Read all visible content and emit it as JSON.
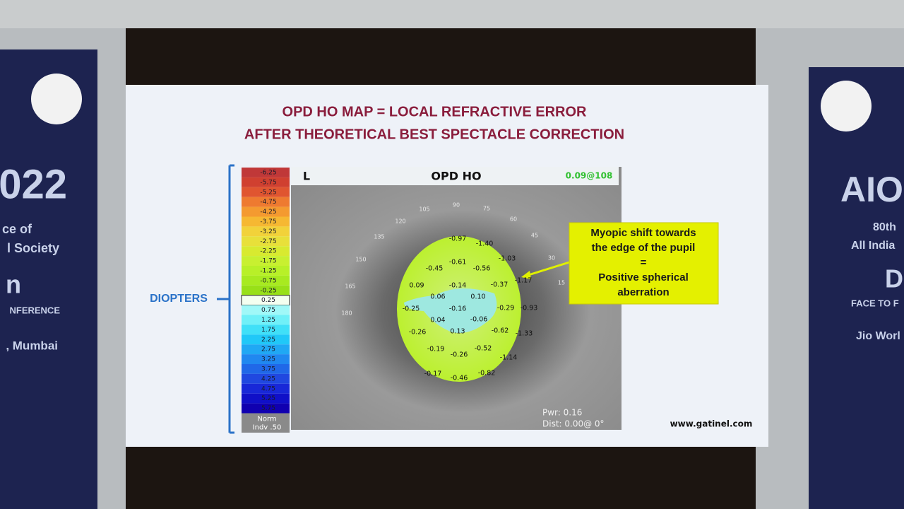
{
  "slide": {
    "title_line1": "OPD HO MAP = LOCAL REFRACTIVE ERROR",
    "title_line2": "AFTER THEORETICAL BEST SPECTACLE CORRECTION",
    "axis_label": "DIOPTERS",
    "scale": [
      "-6.25",
      "-5.75",
      "-5.25",
      "-4.75",
      "-4.25",
      "-3.75",
      "-3.25",
      "-2.75",
      "-2.25",
      "-1.75",
      "-1.25",
      "-0.75",
      "-0.25",
      "0.25",
      "0.75",
      "1.25",
      "1.75",
      "2.25",
      "2.75",
      "3.25",
      "3.75",
      "4.25",
      "4.75",
      "5.25",
      "5.75"
    ],
    "scale_footer": [
      "Norm",
      "Indv .50"
    ],
    "map": {
      "eye": "L",
      "title": "OPD HO",
      "corner": "0.09@108",
      "angles": [
        "105",
        "90",
        "75",
        "60",
        "45",
        "30",
        "15",
        "120",
        "135",
        "150",
        "165",
        "180"
      ],
      "values": [
        "-0.97",
        "-1.40",
        "-0.61",
        "-0.56",
        "-1.03",
        "-0.45",
        "-1.17",
        "-0.37",
        "0.09",
        "-0.14",
        "0.06",
        "0.10",
        "-0.25",
        "-0.16",
        "-0.29",
        "-0.93",
        "0.04",
        "-0.06",
        "-0.26",
        "0.13",
        "-0.62",
        "-1.33",
        "-0.19",
        "-0.26",
        "-0.52",
        "-1.14",
        "-0.17",
        "-0.46",
        "-0.82"
      ],
      "pwr": "Pwr:  0.16",
      "dist": "Dist:  0.00@  0°"
    },
    "callout": [
      "Myopic shift towards",
      "the edge of the pupil",
      "=",
      "Positive spherical",
      "aberration"
    ],
    "footer": "www.gatinel.com"
  },
  "banners": {
    "left": [
      "022",
      "ce of",
      "l Society",
      "n",
      "NFERENCE",
      ", Mumbai"
    ],
    "right": [
      "AIO",
      "80th",
      "All India",
      "D",
      "FACE TO F",
      "Jio Worl"
    ]
  }
}
